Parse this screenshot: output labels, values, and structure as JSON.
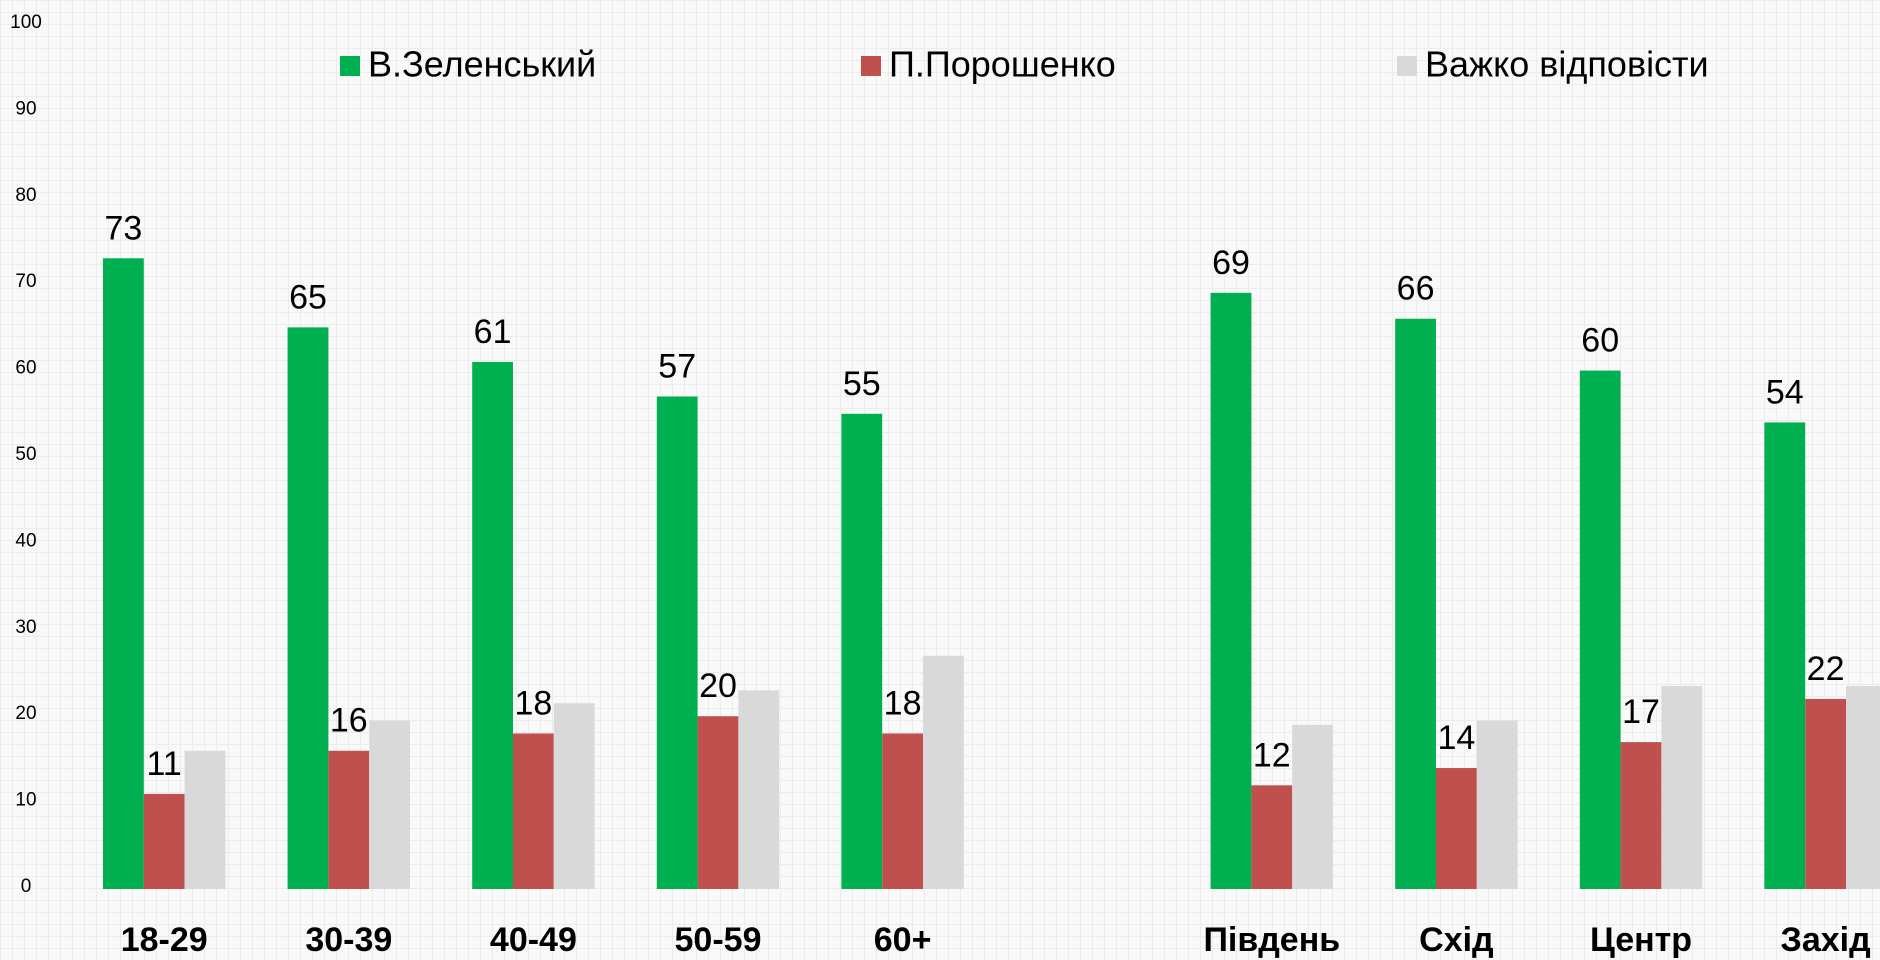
{
  "chart_data": {
    "type": "bar",
    "categories": [
      "18-29",
      "30-39",
      "40-49",
      "50-59",
      "60+",
      null,
      "Південь",
      "Схід",
      "Центр",
      "Захід"
    ],
    "series": [
      {
        "name": "В.Зеленський",
        "color": "#00b050",
        "values": [
          73,
          65,
          61,
          57,
          55,
          null,
          69,
          66,
          60,
          54
        ],
        "labels": true
      },
      {
        "name": "П.Порошенко",
        "color": "#c0504d",
        "values": [
          11,
          16,
          18,
          20,
          18,
          null,
          12,
          14,
          17,
          22
        ],
        "labels": true
      },
      {
        "name": "Важко відповісти",
        "color": "#d9d9d9",
        "values": [
          16,
          19.5,
          21.5,
          23,
          27,
          null,
          19,
          19.5,
          23.5,
          23.5
        ],
        "labels": false
      }
    ],
    "ylim": [
      0,
      100
    ],
    "yticks": [
      0,
      10,
      20,
      30,
      40,
      50,
      60,
      70,
      80,
      90,
      100
    ],
    "grid": false,
    "legend": "top"
  }
}
